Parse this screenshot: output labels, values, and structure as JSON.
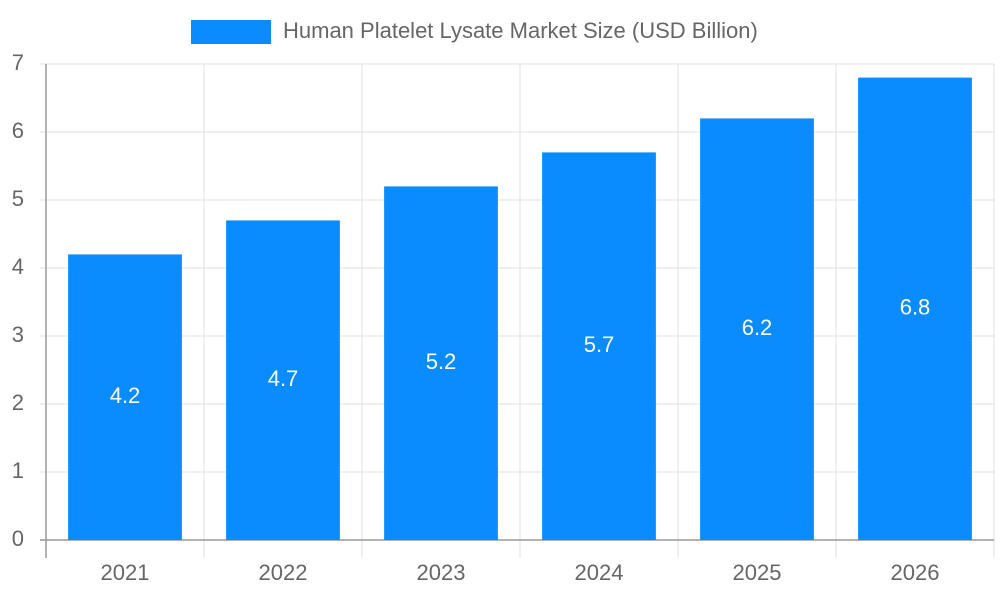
{
  "chart_data": {
    "type": "bar",
    "categories": [
      "2021",
      "2022",
      "2023",
      "2024",
      "2025",
      "2026"
    ],
    "series": [
      {
        "name": "Human Platelet Lysate Market Size (USD Billion)",
        "color": "#0a8cff",
        "values": [
          4.2,
          4.7,
          5.2,
          5.7,
          6.2,
          6.8
        ]
      }
    ],
    "ylim": [
      0,
      7
    ],
    "yticks": [
      0,
      1,
      2,
      3,
      4,
      5,
      6,
      7
    ],
    "grid": true,
    "legend": "top"
  }
}
